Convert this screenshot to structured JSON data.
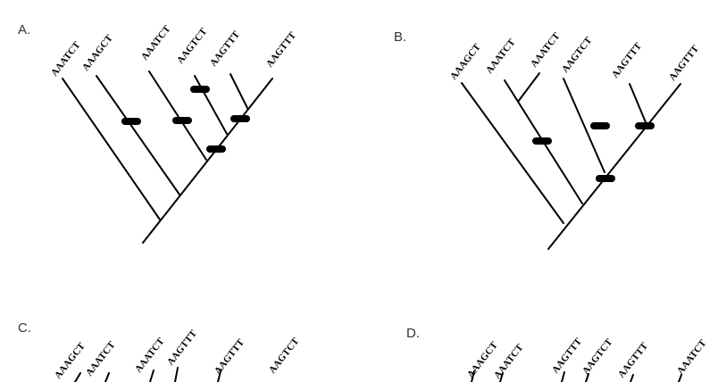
{
  "figure": {
    "panels": [
      {
        "id": "A",
        "label": "A.",
        "taxa": [
          "AAATCT",
          "AAAGCT",
          "AAATCT",
          "AAGTCT",
          "AAGTTT",
          "AAGTTT"
        ]
      },
      {
        "id": "B",
        "label": "B.",
        "taxa": [
          "AAAGCT",
          "AAATCT",
          "AAATCT",
          "AAGTCT",
          "AAGTTT",
          "AAGTTT"
        ]
      },
      {
        "id": "C",
        "label": "C.",
        "taxa": [
          "AAAGCT",
          "AAATCT",
          "AAATCT",
          "AAGTTT",
          "AAGTTT",
          "AAGTCT"
        ]
      },
      {
        "id": "D",
        "label": "D.",
        "taxa": [
          "AAAGCT",
          "AAATCT",
          "AAGTTT",
          "AAGTCT",
          "AAGTTT",
          "AAATCT"
        ]
      }
    ]
  },
  "colors": {
    "ink": "#000000",
    "label": "#333333",
    "background": "#ffffff"
  }
}
